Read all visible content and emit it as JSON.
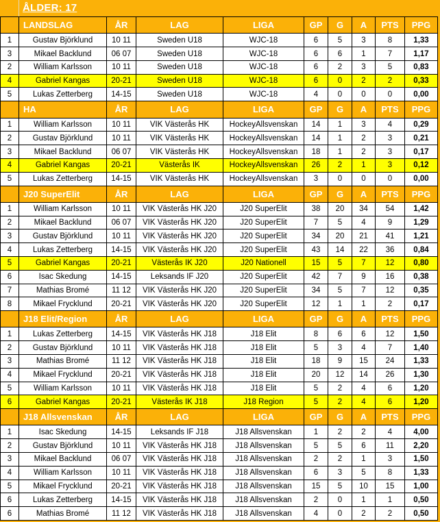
{
  "title": "ÅLDER: 17",
  "colors": {
    "background_orange": "#FBB108",
    "header_orange": "#FBB108",
    "highlight_yellow": "#FFFF00",
    "cell_white": "#FFFFFF",
    "border_black": "#000000",
    "header_text": "#FFFFFF",
    "title_text": "#FFFFFF"
  },
  "shared_columns": [
    "ÅR",
    "LAG",
    "LIGA",
    "GP",
    "G",
    "A",
    "PTS",
    "PPG"
  ],
  "sections": [
    {
      "label": "LANDSLAG",
      "rows": [
        {
          "highlight": false,
          "cells": [
            "1",
            "Gustav Björklund",
            "10 11",
            "Sweden U18",
            "WJC-18",
            "6",
            "5",
            "3",
            "8",
            "1,33"
          ]
        },
        {
          "highlight": false,
          "cells": [
            "3",
            "Mikael Backlund",
            "06 07",
            "Sweden U18",
            "WJC-18",
            "6",
            "6",
            "1",
            "7",
            "1,17"
          ]
        },
        {
          "highlight": false,
          "cells": [
            "2",
            "William Karlsson",
            "10 11",
            "Sweden U18",
            "WJC-18",
            "6",
            "2",
            "3",
            "5",
            "0,83"
          ]
        },
        {
          "highlight": true,
          "cells": [
            "4",
            "Gabriel Kangas",
            "20-21",
            "Sweden U18",
            "WJC-18",
            "6",
            "0",
            "2",
            "2",
            "0,33"
          ]
        },
        {
          "highlight": false,
          "cells": [
            "5",
            "Lukas Zetterberg",
            "14-15",
            "Sweden U18",
            "WJC-18",
            "4",
            "0",
            "0",
            "0",
            "0,00"
          ]
        }
      ]
    },
    {
      "label": "HA",
      "rows": [
        {
          "highlight": false,
          "cells": [
            "1",
            "William Karlsson",
            "10 11",
            "VIK Västerås HK",
            "HockeyAllsvenskan",
            "14",
            "1",
            "3",
            "4",
            "0,29"
          ]
        },
        {
          "highlight": false,
          "cells": [
            "2",
            "Gustav Björklund",
            "10 11",
            "VIK Västerås HK",
            "HockeyAllsvenskan",
            "14",
            "1",
            "2",
            "3",
            "0,21"
          ]
        },
        {
          "highlight": false,
          "cells": [
            "3",
            "Mikael Backlund",
            "06 07",
            "VIK Västerås HK",
            "HockeyAllsvenskan",
            "18",
            "1",
            "2",
            "3",
            "0,17"
          ]
        },
        {
          "highlight": true,
          "cells": [
            "4",
            "Gabriel Kangas",
            "20-21",
            "Västerås IK",
            "HockeyAllsvenskan",
            "26",
            "2",
            "1",
            "3",
            "0,12"
          ]
        },
        {
          "highlight": false,
          "cells": [
            "5",
            "Lukas Zetterberg",
            "14-15",
            "VIK Västerås HK",
            "HockeyAllsvenskan",
            "3",
            "0",
            "0",
            "0",
            "0,00"
          ]
        }
      ]
    },
    {
      "label": "J20 SuperElit",
      "rows": [
        {
          "highlight": false,
          "cells": [
            "1",
            "William Karlsson",
            "10 11",
            "VIK Västerås HK J20",
            "J20 SuperElit",
            "38",
            "20",
            "34",
            "54",
            "1,42"
          ]
        },
        {
          "highlight": false,
          "cells": [
            "2",
            "Mikael Backlund",
            "06 07",
            "VIK Västerås HK J20",
            "J20 SuperElit",
            "7",
            "5",
            "4",
            "9",
            "1,29"
          ]
        },
        {
          "highlight": false,
          "cells": [
            "3",
            "Gustav Björklund",
            "10 11",
            "VIK Västerås HK J20",
            "J20 SuperElit",
            "34",
            "20",
            "21",
            "41",
            "1,21"
          ]
        },
        {
          "highlight": false,
          "cells": [
            "4",
            "Lukas Zetterberg",
            "14-15",
            "VIK Västerås HK J20",
            "J20 SuperElit",
            "43",
            "14",
            "22",
            "36",
            "0,84"
          ]
        },
        {
          "highlight": true,
          "cells": [
            "5",
            "Gabriel Kangas",
            "20-21",
            "Västerås IK J20",
            "J20 Nationell",
            "15",
            "5",
            "7",
            "12",
            "0,80"
          ]
        },
        {
          "highlight": false,
          "cells": [
            "6",
            "Isac Skedung",
            "14-15",
            "Leksands IF J20",
            "J20 SuperElit",
            "42",
            "7",
            "9",
            "16",
            "0,38"
          ]
        },
        {
          "highlight": false,
          "cells": [
            "7",
            "Mathias Bromé",
            "11 12",
            "VIK Västerås HK J20",
            "J20 SuperElit",
            "34",
            "5",
            "7",
            "12",
            "0,35"
          ]
        },
        {
          "highlight": false,
          "cells": [
            "8",
            "Mikael Frycklund",
            "20-21",
            "VIK Västerås HK J20",
            "J20 SuperElit",
            "12",
            "1",
            "1",
            "2",
            "0,17"
          ]
        }
      ]
    },
    {
      "label": "J18 Elit/Region",
      "rows": [
        {
          "highlight": false,
          "cells": [
            "1",
            "Lukas Zetterberg",
            "14-15",
            "VIK Västerås HK J18",
            "J18 Elit",
            "8",
            "6",
            "6",
            "12",
            "1,50"
          ]
        },
        {
          "highlight": false,
          "cells": [
            "2",
            "Gustav Björklund",
            "10 11",
            "VIK Västerås HK J18",
            "J18 Elit",
            "5",
            "3",
            "4",
            "7",
            "1,40"
          ]
        },
        {
          "highlight": false,
          "cells": [
            "3",
            "Mathias Bromé",
            "11 12",
            "VIK Västerås HK J18",
            "J18 Elit",
            "18",
            "9",
            "15",
            "24",
            "1,33"
          ]
        },
        {
          "highlight": false,
          "cells": [
            "4",
            "Mikael Frycklund",
            "20-21",
            "VIK Västerås HK J18",
            "J18 Elit",
            "20",
            "12",
            "14",
            "26",
            "1,30"
          ]
        },
        {
          "highlight": false,
          "cells": [
            "5",
            "William Karlsson",
            "10 11",
            "VIK Västerås HK J18",
            "J18 Elit",
            "5",
            "2",
            "4",
            "6",
            "1,20"
          ]
        },
        {
          "highlight": true,
          "cells": [
            "6",
            "Gabriel Kangas",
            "20-21",
            "Västerås IK J18",
            "J18 Region",
            "5",
            "2",
            "4",
            "6",
            "1,20"
          ]
        }
      ]
    },
    {
      "label": "J18 Allsvenskan",
      "rows": [
        {
          "highlight": false,
          "cells": [
            "1",
            "Isac Skedung",
            "14-15",
            "Leksands IF J18",
            "J18 Allsvenskan",
            "1",
            "2",
            "2",
            "4",
            "4,00"
          ]
        },
        {
          "highlight": false,
          "cells": [
            "2",
            "Gustav Björklund",
            "10 11",
            "VIK Västerås HK J18",
            "J18 Allsvenskan",
            "5",
            "5",
            "6",
            "11",
            "2,20"
          ]
        },
        {
          "highlight": false,
          "cells": [
            "3",
            "Mikael Backlund",
            "06 07",
            "VIK Västerås HK J18",
            "J18 Allsvenskan",
            "2",
            "2",
            "1",
            "3",
            "1,50"
          ]
        },
        {
          "highlight": false,
          "cells": [
            "4",
            "William Karlsson",
            "10 11",
            "VIK Västerås HK J18",
            "J18 Allsvenskan",
            "6",
            "3",
            "5",
            "8",
            "1,33"
          ]
        },
        {
          "highlight": false,
          "cells": [
            "5",
            "Mikael Frycklund",
            "20-21",
            "VIK Västerås HK J18",
            "J18 Allsvenskan",
            "15",
            "5",
            "10",
            "15",
            "1,00"
          ]
        },
        {
          "highlight": false,
          "cells": [
            "6",
            "Lukas Zetterberg",
            "14-15",
            "VIK Västerås HK J18",
            "J18 Allsvenskan",
            "2",
            "0",
            "1",
            "1",
            "0,50"
          ]
        },
        {
          "highlight": false,
          "cells": [
            "6",
            "Mathias Bromé",
            "11 12",
            "VIK Västerås HK J18",
            "J18 Allsvenskan",
            "4",
            "0",
            "2",
            "2",
            "0,50"
          ]
        }
      ]
    }
  ]
}
